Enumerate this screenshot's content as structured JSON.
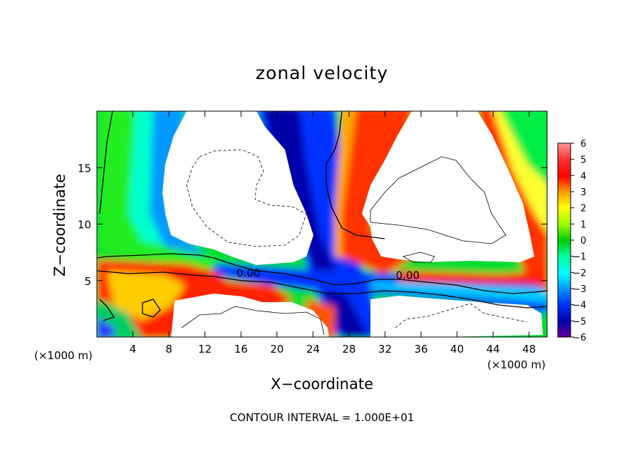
{
  "chart_data": {
    "type": "heatmap",
    "title": "zonal velocity",
    "xlabel": "X−coordinate",
    "ylabel": "Z−coordinate",
    "x_unit_left": "(×1000 m)",
    "x_unit_right": "(×1000 m)",
    "xlim": [
      0,
      50
    ],
    "ylim": [
      0,
      20
    ],
    "x_ticks": [
      "4",
      "8",
      "12",
      "16",
      "20",
      "24",
      "28",
      "32",
      "36",
      "40",
      "44",
      "48"
    ],
    "y_ticks": [
      "5",
      "10",
      "15"
    ],
    "colorbar": {
      "range": [
        -6,
        6
      ],
      "labels": [
        "6",
        "5",
        "4",
        "3",
        "2",
        "1",
        "0",
        "−1",
        "−2",
        "−3",
        "−4",
        "−5",
        "−6"
      ]
    },
    "contour_labels": [
      {
        "text": "0.00",
        "x": 15.5,
        "y": 5.4
      },
      {
        "text": "0.00",
        "x": 33.2,
        "y": 5.2
      }
    ],
    "footer": "CONTOUR INTERVAL = 1.000E+01",
    "colors": {
      "min": "#660099",
      "dark_blue": "#0000cc",
      "blue": "#0066ff",
      "cyan": "#00ffff",
      "green": "#00cc00",
      "yellow": "#ffff00",
      "orange": "#ff9900",
      "red": "#ff0000",
      "max": "#ff9999",
      "out_of_range": "#ffffff"
    }
  }
}
